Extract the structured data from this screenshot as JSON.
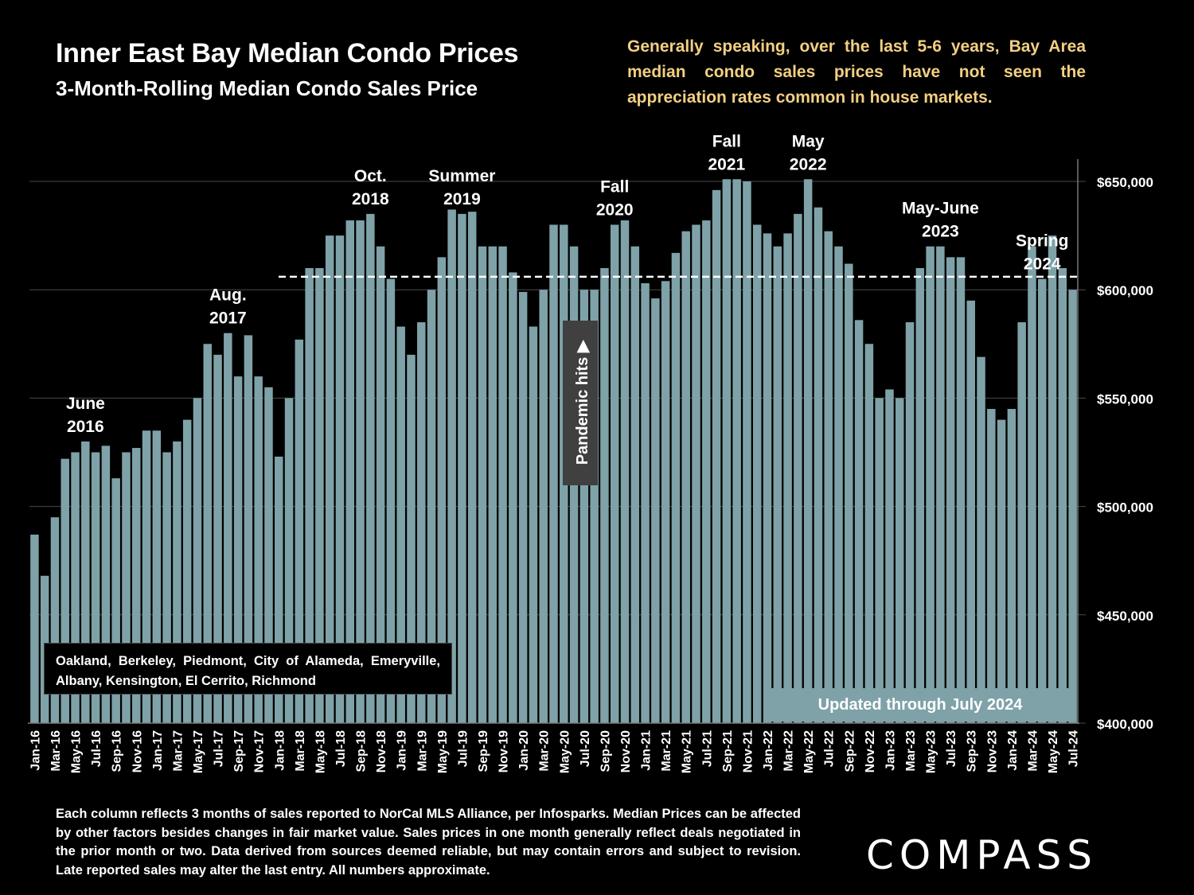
{
  "header": {
    "title": "Inner East Bay Median Condo Prices",
    "subtitle": "3-Month-Rolling Median Condo Sales Price",
    "note": "Generally speaking, over the last 5-6 years, Bay Area median condo sales prices have not seen the appreciation rates common in house markets."
  },
  "annotations": {
    "areas": "Oakland, Berkeley, Piedmont, City of Alameda, Emeryville, Albany, Kensington, El Cerrito, Richmond",
    "updated": "Updated through July 2024",
    "pandemic": "Pandemic hits ▶"
  },
  "footer": {
    "text": "Each column reflects 3 months of sales reported to NorCal MLS Alliance, per Infosparks. Median Prices can be affected by other factors besides changes in fair market value. Sales prices in one month generally reflect deals negotiated in the prior month or two. Data derived from sources deemed reliable, but may contain errors and subject to revision. Late reported sales may alter the last entry. All numbers approximate.",
    "logo": "COMPASS"
  },
  "colors": {
    "bar": "#7ea2a8",
    "note": "#f2cf82",
    "background": "#000000",
    "pandemic_box": "#404040"
  },
  "chart_data": {
    "type": "bar",
    "title": "Inner East Bay Median Condo Prices",
    "subtitle": "3-Month-Rolling Median Condo Sales Price",
    "xlabel": "",
    "ylabel": "",
    "ylim": [
      400000,
      650000
    ],
    "yticks": [
      400000,
      450000,
      500000,
      550000,
      600000,
      650000
    ],
    "ytick_labels": [
      "$400,000",
      "$450,000",
      "$500,000",
      "$550,000",
      "$600,000",
      "$650,000"
    ],
    "y_axis_side": "right",
    "grid": true,
    "reference_line": 606000,
    "categories": [
      "Jan-16",
      "Feb-16",
      "Mar-16",
      "Apr-16",
      "May-16",
      "Jun-16",
      "Jul-16",
      "Aug-16",
      "Sep-16",
      "Oct-16",
      "Nov-16",
      "Dec-16",
      "Jan-17",
      "Feb-17",
      "Mar-17",
      "Apr-17",
      "May-17",
      "Jun-17",
      "Jul-17",
      "Aug-17",
      "Sep-17",
      "Oct-17",
      "Nov-17",
      "Dec-17",
      "Jan-18",
      "Feb-18",
      "Mar-18",
      "Apr-18",
      "May-18",
      "Jun-18",
      "Jul-18",
      "Aug-18",
      "Sep-18",
      "Oct-18",
      "Nov-18",
      "Dec-18",
      "Jan-19",
      "Feb-19",
      "Mar-19",
      "Apr-19",
      "May-19",
      "Jun-19",
      "Jul-19",
      "Aug-19",
      "Sep-19",
      "Oct-19",
      "Nov-19",
      "Dec-19",
      "Jan-20",
      "Feb-20",
      "Mar-20",
      "Apr-20",
      "May-20",
      "Jun-20",
      "Jul-20",
      "Aug-20",
      "Sep-20",
      "Oct-20",
      "Nov-20",
      "Dec-20",
      "Jan-21",
      "Feb-21",
      "Mar-21",
      "Apr-21",
      "May-21",
      "Jun-21",
      "Jul-21",
      "Aug-21",
      "Sep-21",
      "Oct-21",
      "Nov-21",
      "Dec-21",
      "Jan-22",
      "Feb-22",
      "Mar-22",
      "Apr-22",
      "May-22",
      "Jun-22",
      "Jul-22",
      "Aug-22",
      "Sep-22",
      "Oct-22",
      "Nov-22",
      "Dec-22",
      "Jan-23",
      "Feb-23",
      "Mar-23",
      "Apr-23",
      "May-23",
      "Jun-23",
      "Jul-23",
      "Aug-23",
      "Sep-23",
      "Oct-23",
      "Nov-23",
      "Dec-23",
      "Jan-24",
      "Feb-24",
      "Mar-24",
      "Apr-24",
      "May-24",
      "Jun-24",
      "Jul-24"
    ],
    "tick_labels": [
      "Jan-16",
      "",
      "Mar-16",
      "",
      "May-16",
      "",
      "Jul-16",
      "",
      "Sep-16",
      "",
      "Nov-16",
      "",
      "Jan-17",
      "",
      "Mar-17",
      "",
      "May-17",
      "",
      "Jul-17",
      "",
      "Sep-17",
      "",
      "Nov-17",
      "",
      "Jan-18",
      "",
      "Mar-18",
      "",
      "May-18",
      "",
      "Jul-18",
      "",
      "Sep-18",
      "",
      "Nov-18",
      "",
      "Jan-19",
      "",
      "Mar-19",
      "",
      "May-19",
      "",
      "Jul-19",
      "",
      "Sep-19",
      "",
      "Nov-19",
      "",
      "Jan-20",
      "",
      "Mar-20",
      "",
      "May-20",
      "",
      "Jul-20",
      "",
      "Sep-20",
      "",
      "Nov-20",
      "",
      "Jan-21",
      "",
      "Mar-21",
      "",
      "May-21",
      "",
      "Jul-21",
      "",
      "Sep-21",
      "",
      "Nov-21",
      "",
      "Jan-22",
      "",
      "Mar-22",
      "",
      "May-22",
      "",
      "Jul-22",
      "",
      "Sep-22",
      "",
      "Nov-22",
      "",
      "Jan-23",
      "",
      "Mar-23",
      "",
      "May-23",
      "",
      "Jul-23",
      "",
      "Sep-23",
      "",
      "Nov-23",
      "",
      "Jan-24",
      "",
      "Mar-24",
      "",
      "May-24",
      "",
      "Jul-24"
    ],
    "values": [
      487000,
      468000,
      495000,
      522000,
      525000,
      530000,
      525000,
      528000,
      513000,
      525000,
      527000,
      535000,
      535000,
      525000,
      530000,
      540000,
      550000,
      575000,
      570000,
      580000,
      560000,
      579000,
      560000,
      555000,
      523000,
      550000,
      577000,
      610000,
      610000,
      625000,
      625000,
      632000,
      632000,
      635000,
      620000,
      605000,
      583000,
      570000,
      585000,
      600000,
      615000,
      637000,
      635000,
      636000,
      620000,
      620000,
      620000,
      608000,
      599000,
      583000,
      600000,
      630000,
      630000,
      620000,
      600000,
      600000,
      610000,
      630000,
      632000,
      620000,
      603000,
      596000,
      604000,
      617000,
      627000,
      630000,
      632000,
      646000,
      651000,
      651000,
      650000,
      630000,
      626000,
      620000,
      626000,
      635000,
      651000,
      638000,
      627000,
      620000,
      612000,
      586000,
      575000,
      550000,
      554000,
      550000,
      585000,
      610000,
      620000,
      620000,
      615000,
      615000,
      595000,
      569000,
      545000,
      540000,
      545000,
      585000,
      620000,
      605000,
      625000,
      610000,
      600000
    ],
    "callouts": [
      {
        "index": 5,
        "lines": [
          "June",
          "2016"
        ]
      },
      {
        "index": 19,
        "lines": [
          "Aug.",
          "2017"
        ]
      },
      {
        "index": 33,
        "lines": [
          "Oct.",
          "2018"
        ]
      },
      {
        "index": 42,
        "lines": [
          "Summer",
          "2019"
        ]
      },
      {
        "index": 57,
        "lines": [
          "Fall",
          "2020"
        ]
      },
      {
        "index": 68,
        "lines": [
          "Fall",
          "2021"
        ]
      },
      {
        "index": 76,
        "lines": [
          "May",
          "2022"
        ]
      },
      {
        "index": 89,
        "lines": [
          "May-June",
          "2023"
        ]
      },
      {
        "index": 99,
        "lines": [
          "Spring",
          "2024"
        ]
      }
    ]
  }
}
